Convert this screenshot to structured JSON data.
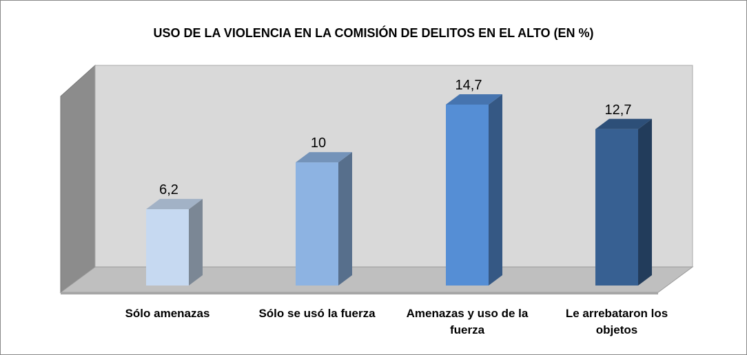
{
  "chart_data": {
    "type": "bar3d",
    "title": "USO DE LA VIOLENCIA EN LA COMISIÓN DE DELITOS EN EL ALTO (EN %)",
    "categories": [
      "Sólo amenazas",
      "Sólo se usó la fuerza",
      "Amenazas y uso de la fuerza",
      "Le arrebataron los objetos"
    ],
    "values": [
      6.2,
      10,
      14.7,
      12.7
    ],
    "value_labels": [
      "6,2",
      "10",
      "14,7",
      "12,7"
    ],
    "colors": [
      "#c6d9f1",
      "#8db3e2",
      "#558ed5",
      "#376092"
    ]
  }
}
